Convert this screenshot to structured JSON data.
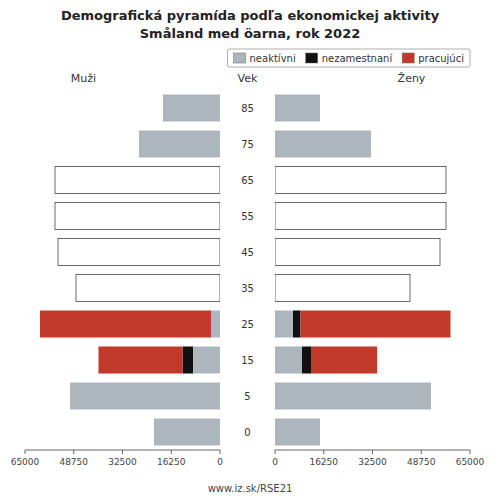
{
  "chart_data": [
    {
      "type": "bar",
      "orientation": "horizontal",
      "stacked": true,
      "title": "Demografická pyramída podľa ekonomickej aktivity",
      "subtitle": "Småland med öarna, rok 2022",
      "xlabel": "Muži",
      "ylabel": "Vek",
      "annotations": [
        "www.iz.sk/RSE21"
      ],
      "categories": [
        "0",
        "5",
        "15",
        "25",
        "35",
        "45",
        "55",
        "65",
        "75",
        "85"
      ],
      "xlim": [
        65000,
        0
      ],
      "xticks": [
        0,
        16250,
        32500,
        48750,
        65000
      ],
      "series": [
        {
          "color": "#adb5bd",
          "values": [
            22000,
            50000,
            9000,
            3000,
            0,
            0,
            0,
            0,
            27000,
            19000
          ]
        },
        {
          "color": "#111111",
          "values": [
            0,
            0,
            3500,
            0,
            0,
            0,
            0,
            0,
            0,
            0
          ]
        },
        {
          "color": "#c0392b",
          "colors": [
            "#c0392b",
            "#c0392b",
            "#c0392b",
            "#c0392b",
            "#ffffff",
            "#ffffff",
            "#ffffff",
            "#ffffff",
            "#c0392b",
            "#c0392b"
          ],
          "values": [
            0,
            0,
            28000,
            57000,
            48000,
            54000,
            55000,
            55000,
            0,
            0
          ]
        }
      ]
    },
    {
      "type": "bar",
      "orientation": "horizontal",
      "stacked": true,
      "xlabel": "Ženy",
      "categories": [
        "0",
        "5",
        "15",
        "25",
        "35",
        "45",
        "55",
        "65",
        "75",
        "85"
      ],
      "xlim": [
        0,
        65000
      ],
      "xticks": [
        0,
        16250,
        32500,
        48750,
        65000
      ],
      "legend": "upper right",
      "series": [
        {
          "name": "neaktívni",
          "color": "#adb5bd",
          "values": [
            15000,
            52000,
            9000,
            6000,
            0,
            0,
            0,
            0,
            32000,
            15000
          ]
        },
        {
          "name": "nezamestnaní",
          "color": "#111111",
          "values": [
            0,
            0,
            3000,
            2500,
            0,
            0,
            0,
            0,
            0,
            0
          ]
        },
        {
          "name": "pracujúci",
          "color": "#c0392b",
          "colors": [
            "#c0392b",
            "#c0392b",
            "#c0392b",
            "#c0392b",
            "#ffffff",
            "#ffffff",
            "#ffffff",
            "#ffffff",
            "#c0392b",
            "#c0392b"
          ],
          "values": [
            0,
            0,
            22000,
            50000,
            45000,
            55000,
            57000,
            57000,
            0,
            0
          ]
        }
      ]
    }
  ]
}
